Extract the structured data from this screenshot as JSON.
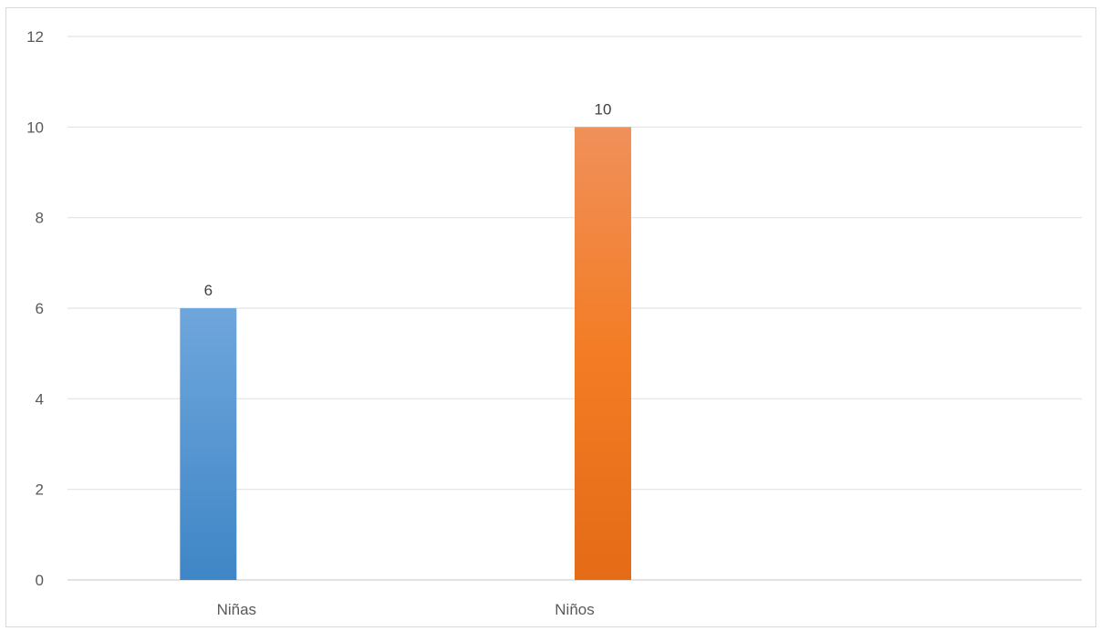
{
  "chart_data": {
    "type": "bar",
    "categories": [
      "Niñas",
      "Niños",
      ""
    ],
    "series": [
      {
        "values": [
          6,
          null,
          null
        ],
        "color": "#5B9BD5"
      },
      {
        "values": [
          null,
          10,
          null
        ],
        "color": "#ED7D31"
      }
    ],
    "data_labels": [
      "6",
      "10"
    ],
    "yticks": [
      "0",
      "2",
      "4",
      "6",
      "8",
      "10",
      "12"
    ],
    "ylim": [
      0,
      12
    ],
    "grid": true,
    "legend": "none",
    "title": "",
    "xlabel": "",
    "ylabel": ""
  }
}
